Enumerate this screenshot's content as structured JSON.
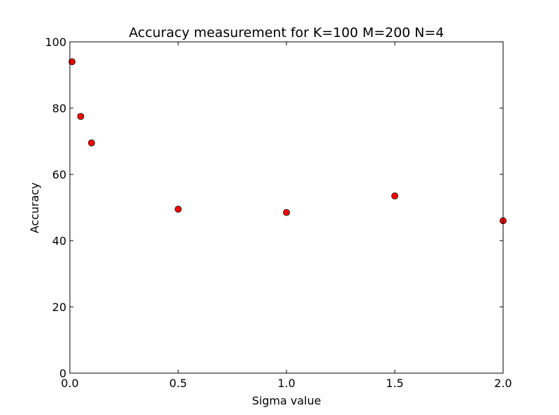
{
  "chart_data": {
    "type": "scatter",
    "title": "Accuracy measurement for K=100 M=200 N=4",
    "xlabel": "Sigma value",
    "ylabel": "Accuracy",
    "xlim": [
      0.0,
      2.0
    ],
    "ylim": [
      0,
      100
    ],
    "xticks": [
      0.0,
      0.5,
      1.0,
      1.5,
      2.0
    ],
    "xtick_labels": [
      "0.0",
      "0.5",
      "1.0",
      "1.5",
      "2.0"
    ],
    "yticks": [
      0,
      20,
      40,
      60,
      80,
      100
    ],
    "ytick_labels": [
      "0",
      "20",
      "40",
      "60",
      "80",
      "100"
    ],
    "grid": false,
    "marker_color": "#ff0000",
    "marker_edge_color": "#000000",
    "series": [
      {
        "x": [
          0.01,
          0.05,
          0.1,
          0.5,
          1.0,
          1.5,
          2.0
        ],
        "y": [
          94,
          77.5,
          69.5,
          49.5,
          48.5,
          53.5,
          46
        ]
      }
    ]
  }
}
